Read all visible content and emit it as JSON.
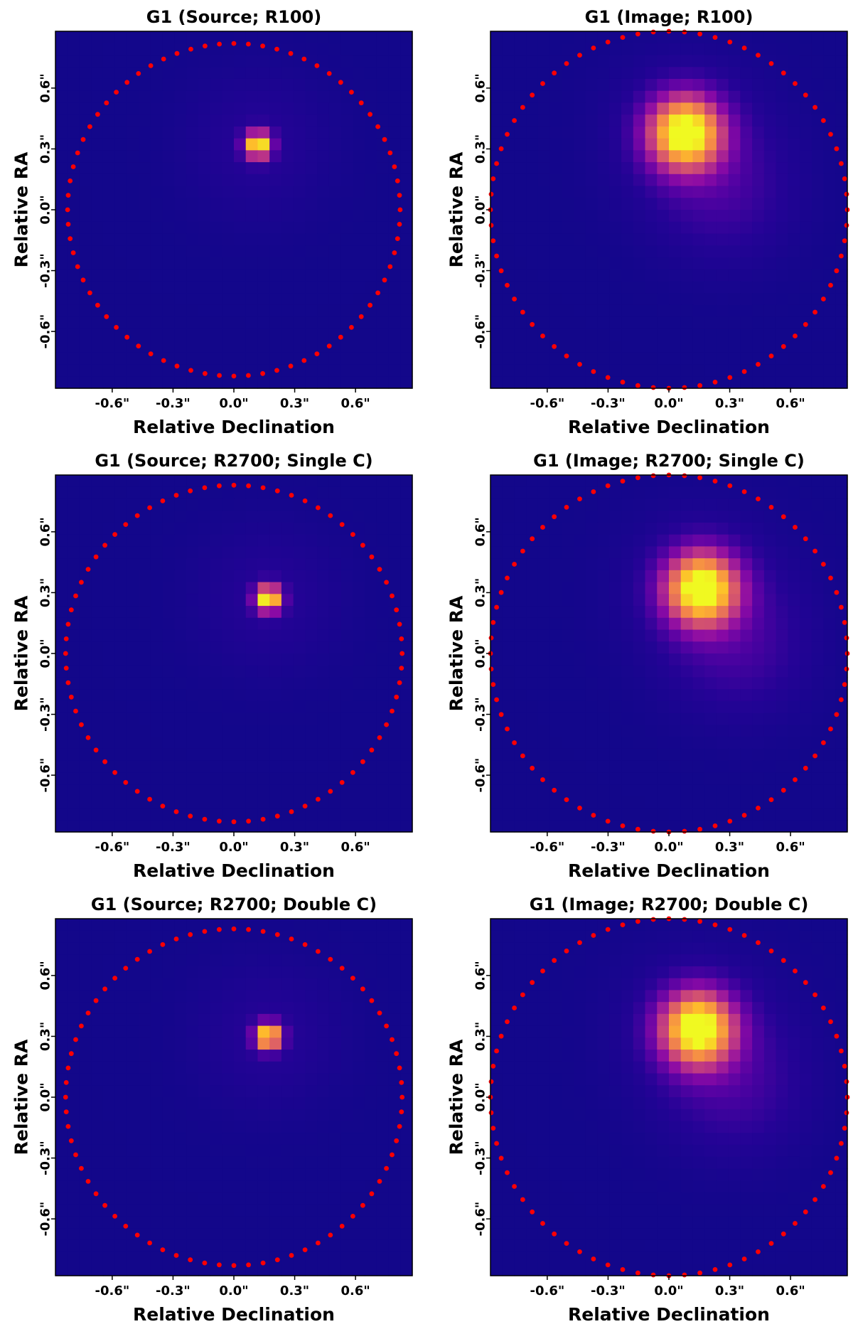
{
  "chart_data": [
    {
      "type": "heatmap",
      "title": "G1 (Source; R100)",
      "xlabel": "Relative Declination",
      "ylabel": "Relative RA",
      "xticks": [
        "-0.6\"",
        "-0.3\"",
        "0.0\"",
        "0.3\"",
        "0.6\""
      ],
      "yticks": [
        "0.6\"",
        "0.3\"",
        "0.0\"",
        "-0.3\"",
        "-0.6\""
      ],
      "xtick_values": [
        -0.6,
        -0.3,
        0.0,
        0.3,
        0.6
      ],
      "ytick_values": [
        0.6,
        0.3,
        0.0,
        -0.3,
        -0.6
      ],
      "xlim": [
        -0.88,
        0.88
      ],
      "ylim": [
        -0.88,
        0.88
      ],
      "colormap": "plasma",
      "peak": {
        "x": 0.12,
        "y": 0.32
      },
      "aperture_radius": 0.82,
      "aperture_color": "#ff0000"
    },
    {
      "type": "heatmap",
      "title": "G1 (Image; R100)",
      "xlabel": "Relative Declination",
      "ylabel": "Relative RA",
      "xticks": [
        "-0.6\"",
        "-0.3\"",
        "0.0\"",
        "0.3\"",
        "0.6\""
      ],
      "yticks": [
        "0.6\"",
        "0.3\"",
        "0.0\"",
        "-0.3\"",
        "-0.6\""
      ],
      "xtick_values": [
        -0.6,
        -0.3,
        0.0,
        0.3,
        0.6
      ],
      "ytick_values": [
        0.6,
        0.3,
        0.0,
        -0.3,
        -0.6
      ],
      "xlim": [
        -0.88,
        0.88
      ],
      "ylim": [
        -0.88,
        0.88
      ],
      "colormap": "plasma",
      "peak": {
        "x": 0.08,
        "y": 0.38
      },
      "aperture_radius": 0.88,
      "aperture_color": "#ff0000"
    },
    {
      "type": "heatmap",
      "title": "G1 (Source; R2700; Single C)",
      "xlabel": "Relative Declination",
      "ylabel": "Relative RA",
      "xticks": [
        "-0.6\"",
        "-0.3\"",
        "0.0\"",
        "0.3\"",
        "0.6\""
      ],
      "yticks": [
        "0.6\"",
        "0.3\"",
        "0.0\"",
        "-0.3\"",
        "-0.6\""
      ],
      "xtick_values": [
        -0.6,
        -0.3,
        0.0,
        0.3,
        0.6
      ],
      "ytick_values": [
        0.6,
        0.3,
        0.0,
        -0.3,
        -0.6
      ],
      "xlim": [
        -0.88,
        0.88
      ],
      "ylim": [
        -0.88,
        0.88
      ],
      "colormap": "plasma",
      "peak": {
        "x": 0.17,
        "y": 0.27
      },
      "aperture_radius": 0.83,
      "aperture_color": "#ff0000"
    },
    {
      "type": "heatmap",
      "title": "G1 (Image; R2700; Single C)",
      "xlabel": "Relative Declination",
      "ylabel": "Relative RA",
      "xticks": [
        "-0.6\"",
        "-0.3\"",
        "0.0\"",
        "0.3\"",
        "0.6\""
      ],
      "yticks": [
        "0.6\"",
        "0.3\"",
        "0.0\"",
        "-0.3\"",
        "-0.6\""
      ],
      "xtick_values": [
        -0.6,
        -0.3,
        0.0,
        0.3,
        0.6
      ],
      "ytick_values": [
        0.6,
        0.3,
        0.0,
        -0.3,
        -0.6
      ],
      "xlim": [
        -0.88,
        0.88
      ],
      "ylim": [
        -0.88,
        0.88
      ],
      "colormap": "plasma",
      "peak": {
        "x": 0.16,
        "y": 0.32
      },
      "aperture_radius": 0.88,
      "aperture_color": "#ff0000"
    },
    {
      "type": "heatmap",
      "title": "G1 (Source; R2700; Double C)",
      "xlabel": "Relative Declination",
      "ylabel": "Relative RA",
      "xticks": [
        "-0.6\"",
        "-0.3\"",
        "0.0\"",
        "0.3\"",
        "0.6\""
      ],
      "yticks": [
        "0.6\"",
        "0.3\"",
        "0.0\"",
        "-0.3\"",
        "-0.6\""
      ],
      "xtick_values": [
        -0.6,
        -0.3,
        0.0,
        0.3,
        0.6
      ],
      "ytick_values": [
        0.6,
        0.3,
        0.0,
        -0.3,
        -0.6
      ],
      "xlim": [
        -0.88,
        0.88
      ],
      "ylim": [
        -0.88,
        0.88
      ],
      "colormap": "plasma",
      "peak": {
        "x": 0.17,
        "y": 0.3
      },
      "aperture_radius": 0.83,
      "aperture_color": "#ff0000"
    },
    {
      "type": "heatmap",
      "title": "G1 (Image; R2700; Double C)",
      "xlabel": "Relative Declination",
      "ylabel": "Relative RA",
      "xticks": [
        "-0.6\"",
        "-0.3\"",
        "0.0\"",
        "0.3\"",
        "0.6\""
      ],
      "yticks": [
        "0.6\"",
        "0.3\"",
        "0.0\"",
        "-0.3\"",
        "-0.6\""
      ],
      "xtick_values": [
        -0.6,
        -0.3,
        0.0,
        0.3,
        0.6
      ],
      "ytick_values": [
        0.6,
        0.3,
        0.0,
        -0.3,
        -0.6
      ],
      "xlim": [
        -0.88,
        0.88
      ],
      "ylim": [
        -0.88,
        0.88
      ],
      "colormap": "plasma",
      "peak": {
        "x": 0.14,
        "y": 0.34
      },
      "aperture_radius": 0.88,
      "aperture_color": "#ff0000"
    }
  ]
}
